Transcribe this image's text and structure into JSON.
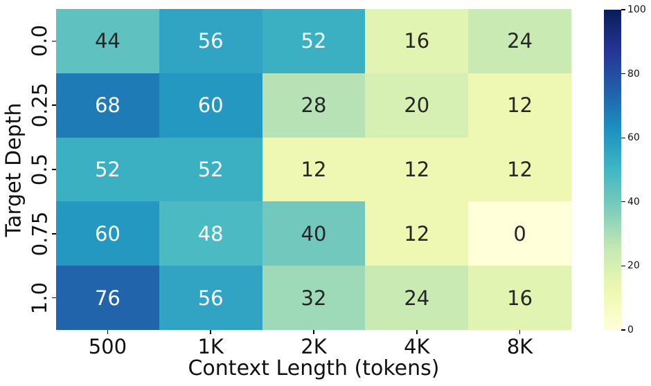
{
  "chart_data": {
    "type": "heatmap",
    "title": "",
    "xlabel": "Context Length (tokens)",
    "ylabel": "Target Depth",
    "x_categories": [
      "500",
      "1K",
      "2K",
      "4K",
      "8K"
    ],
    "y_categories": [
      "0.0",
      "0.25",
      "0.5",
      "0.75",
      "1.0"
    ],
    "values": [
      [
        44,
        56,
        52,
        16,
        24
      ],
      [
        68,
        60,
        28,
        20,
        12
      ],
      [
        52,
        52,
        12,
        12,
        12
      ],
      [
        60,
        48,
        40,
        12,
        0
      ],
      [
        76,
        56,
        32,
        24,
        16
      ]
    ],
    "cell_colors": [
      [
        "#5fc1c0",
        "#30a4c2",
        "#3bb0c3",
        "#e2f4b2",
        "#caeab4"
      ],
      [
        "#1f7bb5",
        "#2498c1",
        "#b6e2b6",
        "#d6efb3",
        "#eef8b3"
      ],
      [
        "#3bb0c3",
        "#3bb0c3",
        "#eef8b3",
        "#eef8b3",
        "#eef8b3"
      ],
      [
        "#2498c1",
        "#4bbac3",
        "#72c8bd",
        "#eef8b3",
        "#ffffd9"
      ],
      [
        "#2264ab",
        "#30a4c2",
        "#9ed9b8",
        "#caeab4",
        "#e2f4b2"
      ]
    ],
    "cell_text_colors": [
      [
        "#262626",
        "#ffffff",
        "#ffffff",
        "#262626",
        "#262626"
      ],
      [
        "#ffffff",
        "#ffffff",
        "#262626",
        "#262626",
        "#262626"
      ],
      [
        "#ffffff",
        "#ffffff",
        "#262626",
        "#262626",
        "#262626"
      ],
      [
        "#ffffff",
        "#ffffff",
        "#262626",
        "#262626",
        "#262626"
      ],
      [
        "#ffffff",
        "#ffffff",
        "#262626",
        "#262626",
        "#262626"
      ]
    ],
    "colormap": "YlGnBu",
    "vmin": 0,
    "vmax": 100,
    "colorbar_ticks": [
      0,
      20,
      40,
      60,
      80,
      100
    ],
    "colormap_stops_low_to_high": [
      "#ffffd9",
      "#edf8b1",
      "#c7e9b4",
      "#7fcdbb",
      "#41b6c4",
      "#1d91c0",
      "#225ea8",
      "#253494",
      "#081d58"
    ],
    "grid": false,
    "legend_position": "colorbar-right",
    "colors": {
      "background": "#ffffff",
      "axis_text": "#111111",
      "annotation_dark": "#262626",
      "annotation_light": "#ffffff"
    }
  }
}
